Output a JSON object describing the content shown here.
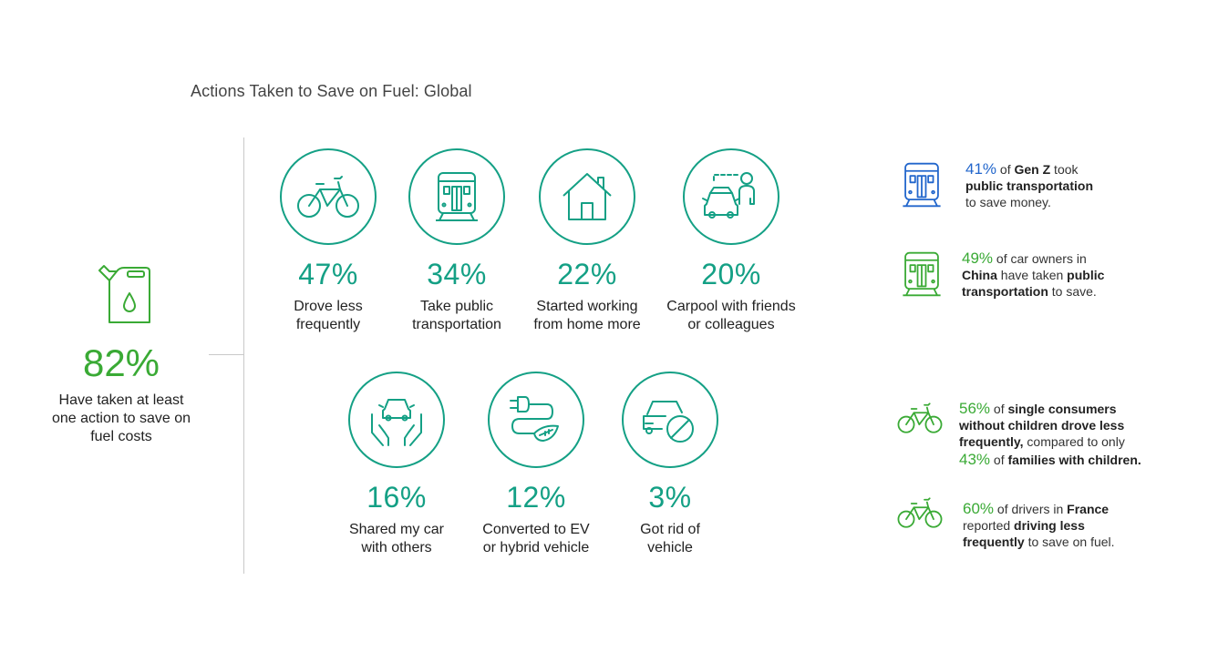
{
  "title": "Actions Taken to Save on Fuel: Global",
  "headline": {
    "icon": "fuel-can-icon",
    "percent": "82%",
    "label_line1": "Have taken at least",
    "label_line2": "one action to save on",
    "label_line3": "fuel costs"
  },
  "actions": [
    {
      "icon": "bicycle-icon",
      "percent": "47%",
      "line1": "Drove less",
      "line2": "frequently"
    },
    {
      "icon": "train-icon",
      "percent": "34%",
      "line1": "Take public",
      "line2": "transportation"
    },
    {
      "icon": "house-icon",
      "percent": "22%",
      "line1": "Started working",
      "line2": "from home more"
    },
    {
      "icon": "carpool-icon",
      "percent": "20%",
      "line1": "Carpool with friends",
      "line2": "or colleagues"
    },
    {
      "icon": "shared-car-hands-icon",
      "percent": "16%",
      "line1": "Shared my car",
      "line2": "with others"
    },
    {
      "icon": "ev-plug-leaf-icon",
      "percent": "12%",
      "line1": "Converted to EV",
      "line2": "or hybrid vehicle"
    },
    {
      "icon": "no-car-icon",
      "percent": "3%",
      "line1": "Got rid of",
      "line2": "vehicle"
    }
  ],
  "facts": [
    {
      "icon": "train-icon",
      "color": "#2266cc",
      "pct": "41%",
      "t1": " of ",
      "b1": "Gen Z",
      "t2": " took",
      "b2": "public transportation",
      "t3": "to save money."
    },
    {
      "icon": "train-icon",
      "color": "#3aaa35",
      "pct": "49%",
      "t1": " of car owners in",
      "b1": "China",
      "t2": " have taken ",
      "b2": "public",
      "b3": "transportation",
      "t3": " to save."
    },
    {
      "icon": "bicycle-icon",
      "color": "#3aaa35",
      "pct": "56%",
      "t1": " of ",
      "b1": "single consumers",
      "b2": "without children drove less",
      "b3": "frequently,",
      "t2": " compared to only",
      "pct2": "43%",
      "t3": " of ",
      "b4": "families with children."
    },
    {
      "icon": "bicycle-icon",
      "color": "#3aaa35",
      "pct": "60%",
      "t1": " of drivers in ",
      "b1": "France",
      "t2": "reported ",
      "b2": "driving less",
      "b3": "frequently",
      "t3": " to save on fuel."
    }
  ]
}
